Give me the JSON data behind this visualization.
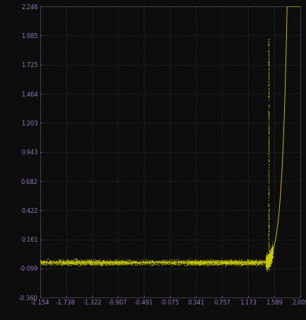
{
  "background_color": "#0d0d0d",
  "grid_color": "#1e2a1e",
  "data_color": "#cccc00",
  "tick_color": "#9977bb",
  "spine_color": "#555555",
  "xlim": [
    -2.154,
    2.005
  ],
  "ylim": [
    -0.36,
    2.246
  ],
  "xticks": [
    -2.154,
    -1.738,
    -1.322,
    -0.907,
    -0.491,
    -0.075,
    0.341,
    0.757,
    1.173,
    1.589,
    2.005
  ],
  "yticks": [
    -0.36,
    -0.099,
    0.161,
    0.422,
    0.682,
    0.943,
    1.203,
    1.464,
    1.725,
    1.985,
    2.246
  ],
  "diode_threshold": 1.47,
  "noise_amplitude": 0.012,
  "flat_y": -0.045,
  "exp_scale": 12.0,
  "exp_amp": 0.05
}
